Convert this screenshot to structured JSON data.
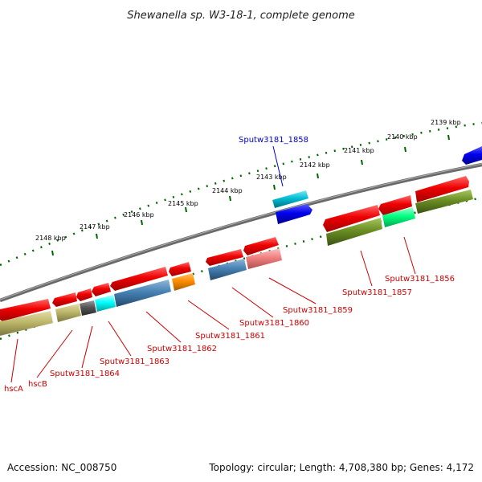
{
  "title": "Shewanella sp. W3-18-1, complete genome",
  "footer": {
    "accession": "Accession: NC_008750",
    "topology": "Topology: circular; Length: 4,708,380 bp; Genes: 4,172"
  },
  "kbp_ticks": [
    "2148 kbp",
    "2147 kbp",
    "2146 kbp",
    "2145 kbp",
    "2144 kbp",
    "2143 kbp",
    "2142 kbp",
    "2141 kbp",
    "2140 kbp",
    "2139 kbp"
  ],
  "gene_labels": [
    {
      "text": "Sputw3181_1858",
      "color": "#0000cc"
    },
    {
      "text": "Sputw3181_1856",
      "color": "#cc0000"
    },
    {
      "text": "Sputw3181_1857",
      "color": "#cc0000"
    },
    {
      "text": "Sputw3181_1859",
      "color": "#cc0000"
    },
    {
      "text": "Sputw3181_1860",
      "color": "#cc0000"
    },
    {
      "text": "Sputw3181_1861",
      "color": "#cc0000"
    },
    {
      "text": "Sputw3181_1862",
      "color": "#cc0000"
    },
    {
      "text": "Sputw3181_1863",
      "color": "#cc0000"
    },
    {
      "text": "Sputw3181_1864",
      "color": "#cc0000"
    },
    {
      "text": "hscB",
      "color": "#cc0000"
    },
    {
      "text": "hscA",
      "color": "#cc0000"
    }
  ],
  "colors": {
    "backbone": "#808080",
    "gene_red": "#ee0000",
    "gene_blue": "#0000ee",
    "gene_cyan": "#00bcd4",
    "cds_olive": "#6b8e23",
    "cds_khaki": "#bdb76b",
    "cds_steelblue": "#4682b4",
    "cds_orange": "#ff8c00",
    "cds_aqua": "#00ffff",
    "cds_pink": "#f08080",
    "cds_gray": "#555555",
    "cds_springgreen": "#00ff7f",
    "tick_green": "#006400"
  }
}
